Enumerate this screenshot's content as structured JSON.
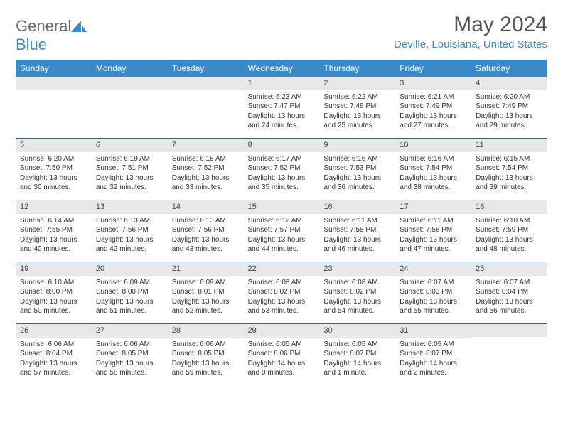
{
  "logo": {
    "text1": "General",
    "text2": "Blue"
  },
  "title": "May 2024",
  "location": "Deville, Louisiana, United States",
  "header_bg": "#3a8ac9",
  "weekdays": [
    "Sunday",
    "Monday",
    "Tuesday",
    "Wednesday",
    "Thursday",
    "Friday",
    "Saturday"
  ],
  "weeks": [
    [
      {
        "n": "",
        "lines": []
      },
      {
        "n": "",
        "lines": []
      },
      {
        "n": "",
        "lines": []
      },
      {
        "n": "1",
        "lines": [
          "Sunrise: 6:23 AM",
          "Sunset: 7:47 PM",
          "Daylight: 13 hours",
          "and 24 minutes."
        ]
      },
      {
        "n": "2",
        "lines": [
          "Sunrise: 6:22 AM",
          "Sunset: 7:48 PM",
          "Daylight: 13 hours",
          "and 25 minutes."
        ]
      },
      {
        "n": "3",
        "lines": [
          "Sunrise: 6:21 AM",
          "Sunset: 7:49 PM",
          "Daylight: 13 hours",
          "and 27 minutes."
        ]
      },
      {
        "n": "4",
        "lines": [
          "Sunrise: 6:20 AM",
          "Sunset: 7:49 PM",
          "Daylight: 13 hours",
          "and 29 minutes."
        ]
      }
    ],
    [
      {
        "n": "5",
        "lines": [
          "Sunrise: 6:20 AM",
          "Sunset: 7:50 PM",
          "Daylight: 13 hours",
          "and 30 minutes."
        ]
      },
      {
        "n": "6",
        "lines": [
          "Sunrise: 6:19 AM",
          "Sunset: 7:51 PM",
          "Daylight: 13 hours",
          "and 32 minutes."
        ]
      },
      {
        "n": "7",
        "lines": [
          "Sunrise: 6:18 AM",
          "Sunset: 7:52 PM",
          "Daylight: 13 hours",
          "and 33 minutes."
        ]
      },
      {
        "n": "8",
        "lines": [
          "Sunrise: 6:17 AM",
          "Sunset: 7:52 PM",
          "Daylight: 13 hours",
          "and 35 minutes."
        ]
      },
      {
        "n": "9",
        "lines": [
          "Sunrise: 6:16 AM",
          "Sunset: 7:53 PM",
          "Daylight: 13 hours",
          "and 36 minutes."
        ]
      },
      {
        "n": "10",
        "lines": [
          "Sunrise: 6:16 AM",
          "Sunset: 7:54 PM",
          "Daylight: 13 hours",
          "and 38 minutes."
        ]
      },
      {
        "n": "11",
        "lines": [
          "Sunrise: 6:15 AM",
          "Sunset: 7:54 PM",
          "Daylight: 13 hours",
          "and 39 minutes."
        ]
      }
    ],
    [
      {
        "n": "12",
        "lines": [
          "Sunrise: 6:14 AM",
          "Sunset: 7:55 PM",
          "Daylight: 13 hours",
          "and 40 minutes."
        ]
      },
      {
        "n": "13",
        "lines": [
          "Sunrise: 6:13 AM",
          "Sunset: 7:56 PM",
          "Daylight: 13 hours",
          "and 42 minutes."
        ]
      },
      {
        "n": "14",
        "lines": [
          "Sunrise: 6:13 AM",
          "Sunset: 7:56 PM",
          "Daylight: 13 hours",
          "and 43 minutes."
        ]
      },
      {
        "n": "15",
        "lines": [
          "Sunrise: 6:12 AM",
          "Sunset: 7:57 PM",
          "Daylight: 13 hours",
          "and 44 minutes."
        ]
      },
      {
        "n": "16",
        "lines": [
          "Sunrise: 6:11 AM",
          "Sunset: 7:58 PM",
          "Daylight: 13 hours",
          "and 46 minutes."
        ]
      },
      {
        "n": "17",
        "lines": [
          "Sunrise: 6:11 AM",
          "Sunset: 7:58 PM",
          "Daylight: 13 hours",
          "and 47 minutes."
        ]
      },
      {
        "n": "18",
        "lines": [
          "Sunrise: 6:10 AM",
          "Sunset: 7:59 PM",
          "Daylight: 13 hours",
          "and 48 minutes."
        ]
      }
    ],
    [
      {
        "n": "19",
        "lines": [
          "Sunrise: 6:10 AM",
          "Sunset: 8:00 PM",
          "Daylight: 13 hours",
          "and 50 minutes."
        ]
      },
      {
        "n": "20",
        "lines": [
          "Sunrise: 6:09 AM",
          "Sunset: 8:00 PM",
          "Daylight: 13 hours",
          "and 51 minutes."
        ]
      },
      {
        "n": "21",
        "lines": [
          "Sunrise: 6:09 AM",
          "Sunset: 8:01 PM",
          "Daylight: 13 hours",
          "and 52 minutes."
        ]
      },
      {
        "n": "22",
        "lines": [
          "Sunrise: 6:08 AM",
          "Sunset: 8:02 PM",
          "Daylight: 13 hours",
          "and 53 minutes."
        ]
      },
      {
        "n": "23",
        "lines": [
          "Sunrise: 6:08 AM",
          "Sunset: 8:02 PM",
          "Daylight: 13 hours",
          "and 54 minutes."
        ]
      },
      {
        "n": "24",
        "lines": [
          "Sunrise: 6:07 AM",
          "Sunset: 8:03 PM",
          "Daylight: 13 hours",
          "and 55 minutes."
        ]
      },
      {
        "n": "25",
        "lines": [
          "Sunrise: 6:07 AM",
          "Sunset: 8:04 PM",
          "Daylight: 13 hours",
          "and 56 minutes."
        ]
      }
    ],
    [
      {
        "n": "26",
        "lines": [
          "Sunrise: 6:06 AM",
          "Sunset: 8:04 PM",
          "Daylight: 13 hours",
          "and 57 minutes."
        ]
      },
      {
        "n": "27",
        "lines": [
          "Sunrise: 6:06 AM",
          "Sunset: 8:05 PM",
          "Daylight: 13 hours",
          "and 58 minutes."
        ]
      },
      {
        "n": "28",
        "lines": [
          "Sunrise: 6:06 AM",
          "Sunset: 8:05 PM",
          "Daylight: 13 hours",
          "and 59 minutes."
        ]
      },
      {
        "n": "29",
        "lines": [
          "Sunrise: 6:05 AM",
          "Sunset: 8:06 PM",
          "Daylight: 14 hours",
          "and 0 minutes."
        ]
      },
      {
        "n": "30",
        "lines": [
          "Sunrise: 6:05 AM",
          "Sunset: 8:07 PM",
          "Daylight: 14 hours",
          "and 1 minute."
        ]
      },
      {
        "n": "31",
        "lines": [
          "Sunrise: 6:05 AM",
          "Sunset: 8:07 PM",
          "Daylight: 14 hours",
          "and 2 minutes."
        ]
      },
      {
        "n": "",
        "lines": []
      }
    ]
  ]
}
